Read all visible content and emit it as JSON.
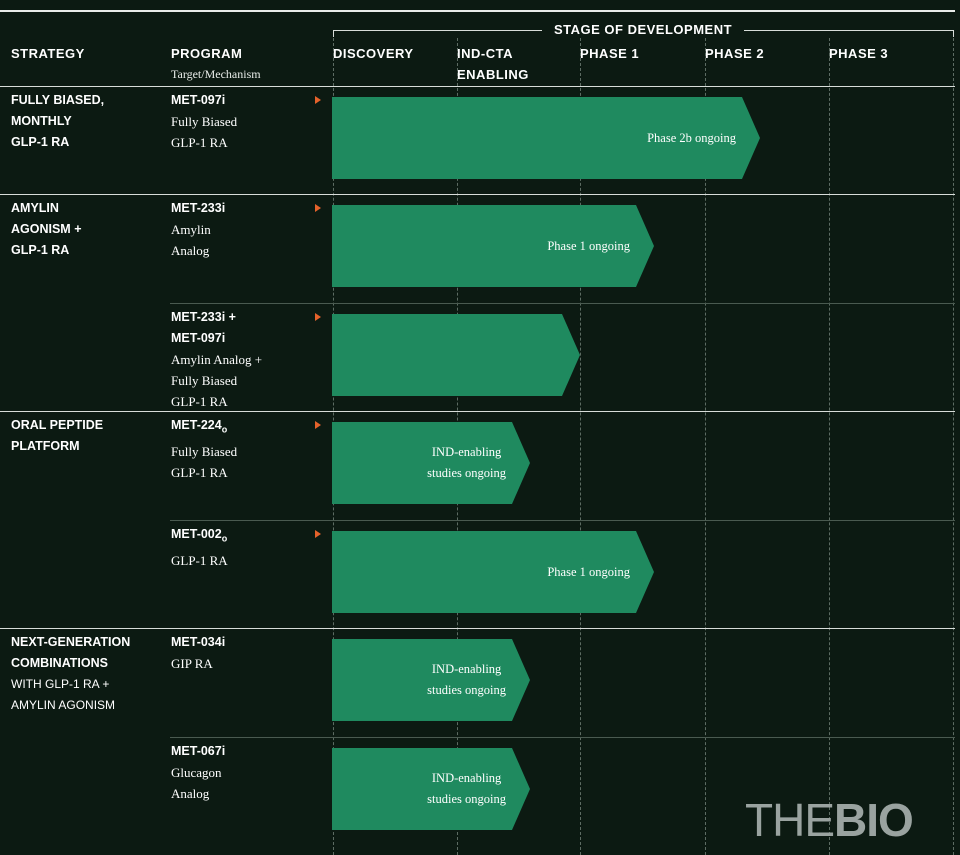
{
  "header": {
    "strategy": "STRATEGY",
    "program": "PROGRAM",
    "program_sub": "Target/Mechanism",
    "stage_title": "STAGE OF DEVELOPMENT",
    "stages": [
      "DISCOVERY",
      "IND-CTA",
      "ENABLING",
      "PHASE 1",
      "PHASE 2",
      "PHASE 3"
    ]
  },
  "strategies": [
    {
      "lines": [
        "FULLY BIASED,",
        "MONTHLY",
        "GLP-1 RA"
      ]
    },
    {
      "lines": [
        "AMYLIN",
        "AGONISM +",
        "GLP-1 RA"
      ]
    },
    {
      "lines": [
        "ORAL PEPTIDE",
        "PLATFORM"
      ]
    },
    {
      "lines": [
        "NEXT-GENERATION",
        "COMBINATIONS"
      ],
      "rest_lines": [
        "WITH GLP-1 RA +",
        "AMYLIN AGONISM"
      ]
    }
  ],
  "programs": [
    {
      "name": "MET-097i",
      "lines": [
        "Fully Biased",
        "GLP-1 RA"
      ],
      "stage_progress": 0.69,
      "status": "Phase 2b ongoing"
    },
    {
      "name": "MET-233i",
      "lines": [
        "Amylin",
        "Analog"
      ],
      "stage_progress": 0.52,
      "status": "Phase 1 ongoing"
    },
    {
      "name": "MET-233i +",
      "name2": "MET-097i",
      "lines": [
        "Amylin Analog +",
        "Fully Biased",
        "GLP-1 RA"
      ],
      "stage_progress": 0.4,
      "status": ""
    },
    {
      "name": "MET-224",
      "name_sub": "o",
      "lines": [
        "Fully Biased",
        "GLP-1 RA"
      ],
      "stage_progress": 0.32,
      "status_lines": [
        "IND-enabling",
        "studies ongoing"
      ]
    },
    {
      "name": "MET-002",
      "name_sub": "o",
      "lines": [
        "GLP-1 RA"
      ],
      "stage_progress": 0.52,
      "status": "Phase 1 ongoing"
    },
    {
      "name": "MET-034i",
      "lines": [
        "GIP RA"
      ],
      "stage_progress": 0.32,
      "status_lines": [
        "IND-enabling",
        "studies ongoing"
      ]
    },
    {
      "name": "MET-067i",
      "lines": [
        "Glucagon",
        "Analog"
      ],
      "stage_progress": 0.32,
      "status_lines": [
        "IND-enabling",
        "studies ongoing"
      ]
    }
  ],
  "logo": {
    "part1": "THE",
    "part2": "BIO"
  },
  "colors": {
    "background": "#0c1a12",
    "bar": "#1f8a5f",
    "marker": "#e5622b"
  }
}
